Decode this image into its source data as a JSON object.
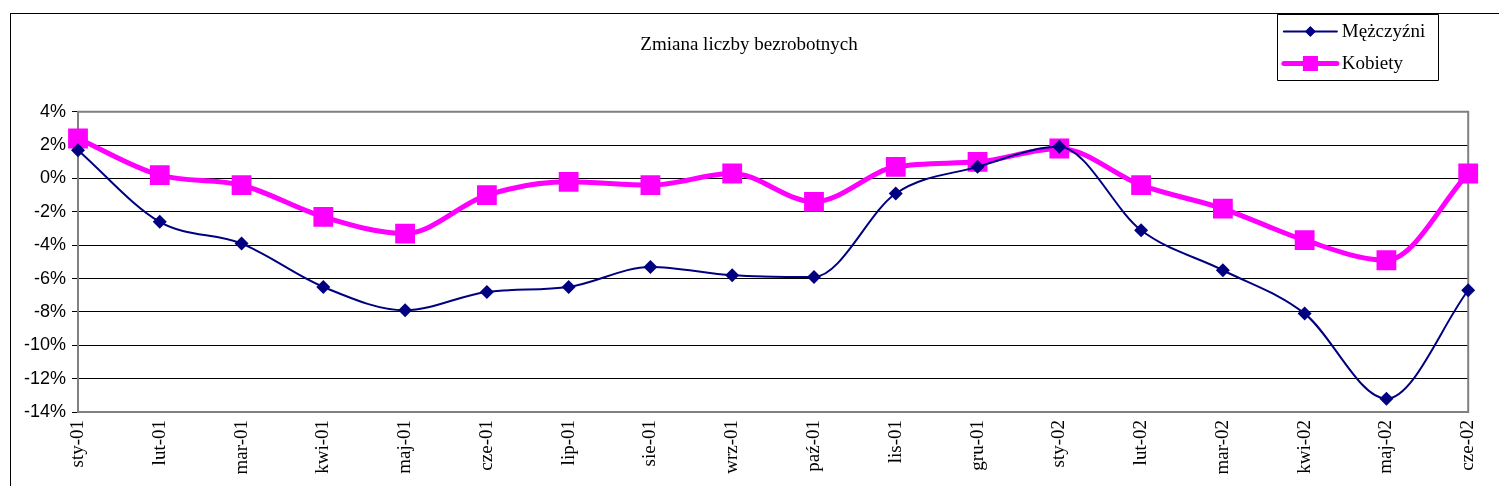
{
  "chart_data": {
    "type": "line",
    "title": "Zmiana liczby bezrobotnych",
    "categories": [
      "sty-01",
      "lut-01",
      "mar-01",
      "kwi-01",
      "maj-01",
      "cze-01",
      "lip-01",
      "sie-01",
      "wrz-01",
      "paź-01",
      "lis-01",
      "gru-01",
      "sty-02",
      "lut-02",
      "mar-02",
      "kwi-02",
      "maj-02",
      "cze-02"
    ],
    "series": [
      {
        "name": "Mężczyźni",
        "color": "#000080",
        "marker": "diamond",
        "values": [
          1.7,
          -2.6,
          -3.9,
          -6.5,
          -7.9,
          -6.8,
          -6.5,
          -5.3,
          -5.8,
          -5.9,
          -0.9,
          0.7,
          1.9,
          -3.1,
          -5.5,
          -8.1,
          -13.2,
          -6.7
        ]
      },
      {
        "name": "Kobiety",
        "color": "#ff00ff",
        "marker": "square",
        "values": [
          2.4,
          0.2,
          -0.4,
          -2.3,
          -3.3,
          -1.0,
          -0.2,
          -0.4,
          0.3,
          -1.4,
          0.7,
          1.0,
          1.8,
          -0.4,
          -1.8,
          -3.7,
          -4.9,
          0.3
        ]
      }
    ],
    "ylim": [
      -14,
      4
    ],
    "yticks": [
      {
        "value": -14,
        "label": "-14%"
      },
      {
        "value": -12,
        "label": "-12%"
      },
      {
        "value": -10,
        "label": "-10%"
      },
      {
        "value": -8,
        "label": "-8%"
      },
      {
        "value": -6,
        "label": "-6%"
      },
      {
        "value": -4,
        "label": "-4%"
      },
      {
        "value": -2,
        "label": "-2%"
      },
      {
        "value": 0,
        "label": "0%"
      },
      {
        "value": 2,
        "label": "2%"
      },
      {
        "value": 4,
        "label": "4%"
      }
    ],
    "grid": "y",
    "legend": "top right"
  }
}
